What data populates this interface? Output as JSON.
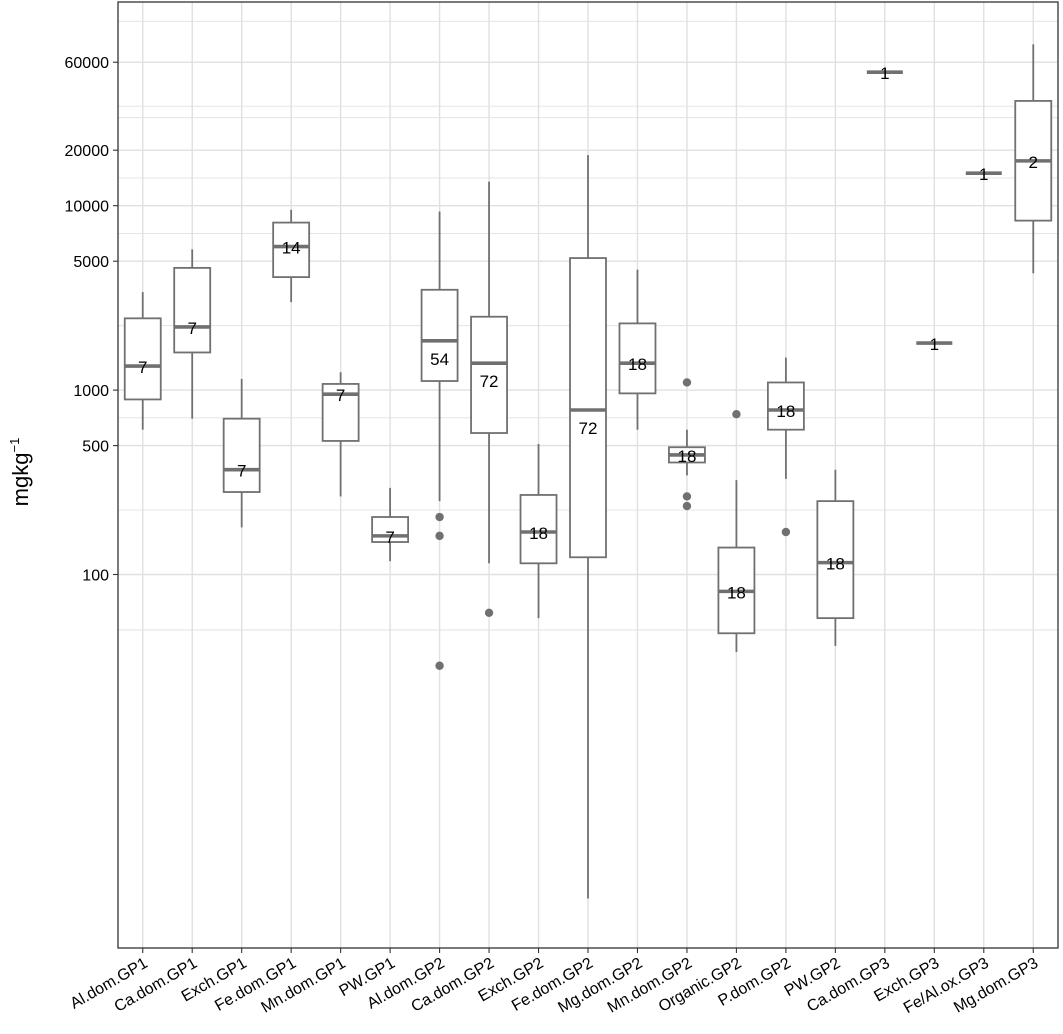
{
  "chart_data": {
    "type": "boxplot",
    "title": "",
    "xlabel": "",
    "ylabel_main": "mgkg",
    "ylabel_sup": "−1",
    "y_scale": "log10",
    "ylim": [
      1,
      100000
    ],
    "y_ticks": [
      100,
      500,
      1000,
      5000,
      10000,
      20000,
      60000
    ],
    "y_tick_labels": [
      "100",
      "500",
      "1000",
      "5000",
      "10000",
      "20000",
      "60000"
    ],
    "grid": true,
    "colors": {
      "box": "#707070",
      "median": "#707070",
      "outlier": "#707070",
      "grid": "#e0e0e0",
      "frame": "#333333"
    },
    "categories": [
      "Al.dom.GP1",
      "Ca.dom.GP1",
      "Exch.GP1",
      "Fe.dom.GP1",
      "Mn.dom.GP1",
      "PW.GP1",
      "Al.dom.GP2",
      "Ca.dom.GP2",
      "Exch.GP2",
      "Fe.dom.GP2",
      "Mg.dom.GP2",
      "Mn.dom.GP2",
      "Organic.GP2",
      "P.dom.GP2",
      "PW.GP2",
      "Ca.dom.GP3",
      "Exch.GP3",
      "Fe/Al.ox.GP3",
      "Mg.dom.GP3"
    ],
    "boxes": [
      {
        "category": "Al.dom.GP1",
        "n": "7",
        "whisker_low": 610,
        "q1": 890,
        "median": 1350,
        "q3": 2450,
        "whisker_high": 3400,
        "outliers": []
      },
      {
        "category": "Ca.dom.GP1",
        "n": "7",
        "whisker_low": 700,
        "q1": 1600,
        "median": 2200,
        "q3": 4600,
        "whisker_high": 5800,
        "outliers": []
      },
      {
        "category": "Exch.GP1",
        "n": "7",
        "whisker_low": 180,
        "q1": 280,
        "median": 370,
        "q3": 700,
        "whisker_high": 1150,
        "outliers": []
      },
      {
        "category": "Fe.dom.GP1",
        "n": "14",
        "whisker_low": 3000,
        "q1": 4100,
        "median": 6000,
        "q3": 8100,
        "whisker_high": 9500,
        "outliers": []
      },
      {
        "category": "Mn.dom.GP1",
        "n": "7",
        "whisker_low": 265,
        "q1": 530,
        "median": 950,
        "q3": 1080,
        "whisker_high": 1250,
        "outliers": []
      },
      {
        "category": "PW.GP1",
        "n": "7",
        "whisker_low": 118,
        "q1": 150,
        "median": 162,
        "q3": 205,
        "whisker_high": 295,
        "outliers": []
      },
      {
        "category": "Al.dom.GP2",
        "n": "54",
        "whisker_low": 250,
        "q1": 1120,
        "median": 1850,
        "q3": 3500,
        "whisker_high": 9300,
        "outliers": [
          205,
          162,
          32
        ]
      },
      {
        "category": "Ca.dom.GP2",
        "n": "72",
        "whisker_low": 115,
        "q1": 585,
        "median": 1400,
        "q3": 2500,
        "whisker_high": 13500,
        "outliers": [
          62
        ]
      },
      {
        "category": "Exch.GP2",
        "n": "18",
        "whisker_low": 58,
        "q1": 115,
        "median": 170,
        "q3": 270,
        "whisker_high": 510,
        "outliers": []
      },
      {
        "category": "Fe.dom.GP2",
        "n": "72",
        "whisker_low": 1.75,
        "q1": 124,
        "median": 780,
        "q3": 5200,
        "whisker_high": 18800,
        "outliers": []
      },
      {
        "category": "Mg.dom.GP2",
        "n": "18",
        "whisker_low": 610,
        "q1": 960,
        "median": 1400,
        "q3": 2300,
        "whisker_high": 4500,
        "outliers": []
      },
      {
        "category": "Mn.dom.GP2",
        "n": "18",
        "whisker_low": 345,
        "q1": 405,
        "median": 445,
        "q3": 490,
        "whisker_high": 610,
        "outliers": [
          1100,
          265,
          235
        ]
      },
      {
        "category": "Organic.GP2",
        "n": "18",
        "whisker_low": 38,
        "q1": 48,
        "median": 81,
        "q3": 140,
        "whisker_high": 325,
        "outliers": [
          740
        ]
      },
      {
        "category": "P.dom.GP2",
        "n": "18",
        "whisker_low": 330,
        "q1": 610,
        "median": 780,
        "q3": 1100,
        "whisker_high": 1500,
        "outliers": [
          170
        ]
      },
      {
        "category": "PW.GP2",
        "n": "18",
        "whisker_low": 41,
        "q1": 58,
        "median": 116,
        "q3": 250,
        "whisker_high": 370,
        "outliers": []
      },
      {
        "category": "Ca.dom.GP3",
        "n": "1",
        "whisker_low": 53000,
        "q1": 53000,
        "median": 53000,
        "q3": 53000,
        "whisker_high": 53000,
        "outliers": []
      },
      {
        "category": "Exch.GP3",
        "n": "1",
        "whisker_low": 1800,
        "q1": 1800,
        "median": 1800,
        "q3": 1800,
        "whisker_high": 1800,
        "outliers": []
      },
      {
        "category": "Fe/Al.ox.GP3",
        "n": "1",
        "whisker_low": 15000,
        "q1": 15000,
        "median": 15000,
        "q3": 15000,
        "whisker_high": 15000,
        "outliers": []
      },
      {
        "category": "Mg.dom.GP3",
        "n": "2",
        "whisker_low": 4300,
        "q1": 8300,
        "median": 17500,
        "q3": 37000,
        "whisker_high": 75000,
        "outliers": []
      }
    ]
  }
}
